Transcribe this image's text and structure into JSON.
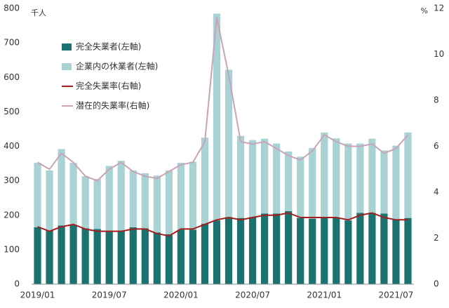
{
  "chart_data": {
    "type": "bar_line",
    "ylabel": "千人",
    "y2label": "%",
    "categories": [
      "2019/01",
      null,
      null,
      null,
      null,
      null,
      "2019/07",
      null,
      null,
      null,
      null,
      null,
      "2020/01",
      null,
      null,
      null,
      null,
      null,
      "2020/07",
      null,
      null,
      null,
      null,
      null,
      "2021/01",
      null,
      null,
      null,
      null,
      null,
      "2021/07",
      null
    ],
    "series": [
      {
        "name": "完全失業者(左軸)",
        "color": "#1a7370",
        "kind": "bar",
        "values": [
          165,
          155,
          170,
          172,
          162,
          160,
          155,
          155,
          165,
          162,
          150,
          145,
          158,
          158,
          175,
          185,
          195,
          192,
          195,
          205,
          205,
          212,
          192,
          190,
          195,
          192,
          185,
          207,
          207,
          205,
          188,
          192
        ]
      },
      {
        "name": "企業内の休業者(左軸)",
        "color": "#a9d3d3",
        "kind": "bar",
        "values": [
          187,
          175,
          222,
          180,
          151,
          145,
          188,
          203,
          165,
          160,
          165,
          185,
          194,
          197,
          250,
          600,
          427,
          238,
          223,
          217,
          203,
          173,
          178,
          205,
          245,
          231,
          223,
          201,
          215,
          183,
          214,
          248
        ]
      },
      {
        "name": "完全失業率(右軸)",
        "color": "#a51d1d",
        "kind": "line",
        "axis": "y2",
        "values": [
          2.5,
          2.3,
          2.5,
          2.6,
          2.4,
          2.3,
          2.3,
          2.3,
          2.4,
          2.4,
          2.2,
          2.1,
          2.4,
          2.4,
          2.6,
          2.8,
          2.9,
          2.8,
          2.9,
          3.0,
          3.0,
          3.1,
          2.9,
          2.9,
          2.9,
          2.9,
          2.8,
          3.0,
          3.1,
          2.9,
          2.8,
          2.8
        ]
      },
      {
        "name": "潜在的失業率(右軸)",
        "color": "#c8a3b8",
        "kind": "line",
        "axis": "y2",
        "values": [
          5.3,
          5.0,
          5.7,
          5.3,
          4.7,
          4.5,
          5.0,
          5.3,
          4.9,
          4.7,
          4.6,
          4.9,
          5.2,
          5.3,
          6.2,
          11.6,
          9.1,
          6.2,
          6.1,
          6.2,
          5.9,
          5.6,
          5.4,
          5.8,
          6.5,
          6.2,
          6.0,
          6.0,
          6.1,
          5.7,
          5.9,
          6.5
        ]
      }
    ],
    "ylim": [
      0,
      800
    ],
    "yticks": [
      0,
      100,
      200,
      300,
      400,
      500,
      600,
      700,
      800
    ],
    "y2lim": [
      0,
      12
    ],
    "y2ticks": [
      0,
      2,
      4,
      6,
      8,
      10,
      12
    ],
    "grid": false
  }
}
